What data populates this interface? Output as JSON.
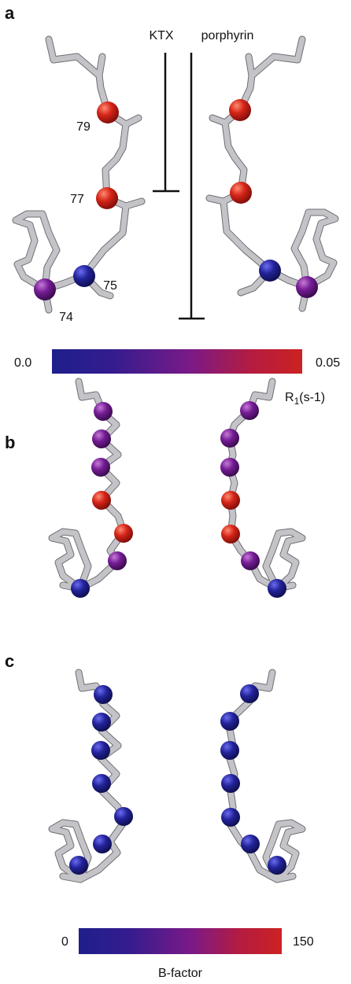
{
  "panels": [
    {
      "label": "a",
      "tracks": [
        "KTX",
        "porphyrin"
      ],
      "residues": [
        "79",
        "77",
        "75",
        "74"
      ],
      "colorbar": {
        "min_label": "0.0",
        "max_label": "0.05",
        "title": {
          "main": "R",
          "sub": "1",
          "rest": "(s-1)"
        }
      }
    },
    {
      "label": "b"
    },
    {
      "label": "c",
      "colorbar": {
        "min_label": "0",
        "max_label": "150",
        "title": "B-factor"
      }
    }
  ]
}
